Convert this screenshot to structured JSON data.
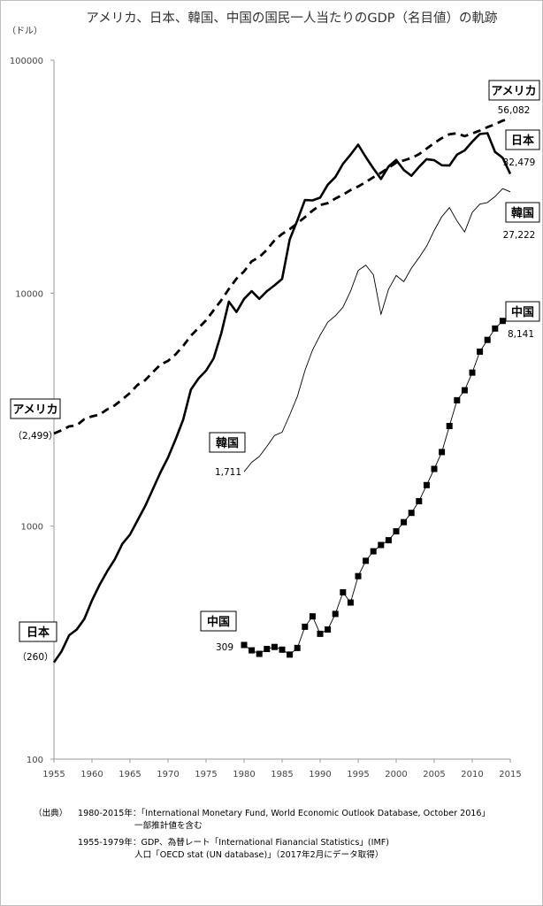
{
  "chart_data": {
    "type": "line",
    "title": "アメリカ、日本、韓国、中国の国民一人当たりのGDP（名目値）の軌跡",
    "ylabel": "（ドル）",
    "xlabel": "",
    "yscale": "log",
    "ylim": [
      100,
      100000
    ],
    "xlim": [
      1955,
      2015
    ],
    "yticks": [
      "100",
      "1000",
      "10000",
      "100000"
    ],
    "xticks": [
      "1955",
      "1960",
      "1965",
      "1970",
      "1975",
      "1980",
      "1985",
      "1990",
      "1995",
      "2000",
      "2005",
      "2010",
      "2015"
    ],
    "grid": false,
    "series": [
      {
        "name": "アメリカ",
        "start_label": "アメリカ",
        "start_value": "（2,499）",
        "end_label": "アメリカ",
        "end_value": "56,082",
        "color": "#000000",
        "style": "dashed",
        "x": [
          1955,
          1956,
          1957,
          1958,
          1959,
          1960,
          1961,
          1962,
          1963,
          1964,
          1965,
          1966,
          1967,
          1968,
          1969,
          1970,
          1971,
          1972,
          1973,
          1974,
          1975,
          1976,
          1977,
          1978,
          1979,
          1980,
          1981,
          1982,
          1983,
          1984,
          1985,
          1986,
          1987,
          1988,
          1989,
          1990,
          1991,
          1992,
          1993,
          1994,
          1995,
          1996,
          1997,
          1998,
          1999,
          2000,
          2001,
          2002,
          2003,
          2004,
          2005,
          2006,
          2007,
          2008,
          2009,
          2010,
          2011,
          2012,
          2013,
          2014,
          2015
        ],
        "y": [
          2499,
          2580,
          2680,
          2710,
          2880,
          2960,
          3010,
          3170,
          3300,
          3500,
          3730,
          4040,
          4230,
          4580,
          4930,
          5120,
          5460,
          5940,
          6560,
          7090,
          7650,
          8450,
          9320,
          10420,
          11540,
          12400,
          13700,
          14260,
          15360,
          16860,
          17950,
          18830,
          19940,
          21200,
          22600,
          23900,
          24340,
          25470,
          26440,
          27700,
          28690,
          29960,
          31460,
          32850,
          34520,
          36330,
          37130,
          38020,
          39490,
          41720,
          44120,
          46300,
          48050,
          48570,
          47190,
          48470,
          49870,
          51600,
          53100,
          55000,
          56082
        ]
      },
      {
        "name": "日本",
        "start_label": "日本",
        "start_value": "（260）",
        "end_label": "日本",
        "end_value": "32,479",
        "color": "#000000",
        "style": "solid",
        "x": [
          1955,
          1956,
          1957,
          1958,
          1959,
          1960,
          1961,
          1962,
          1963,
          1964,
          1965,
          1966,
          1967,
          1968,
          1969,
          1970,
          1971,
          1972,
          1973,
          1974,
          1975,
          1976,
          1977,
          1978,
          1979,
          1980,
          1981,
          1982,
          1983,
          1984,
          1985,
          1986,
          1987,
          1988,
          1989,
          1990,
          1991,
          1992,
          1993,
          1994,
          1995,
          1996,
          1997,
          1998,
          1999,
          2000,
          2001,
          2002,
          2003,
          2004,
          2005,
          2006,
          2007,
          2008,
          2009,
          2010,
          2011,
          2012,
          2013,
          2014,
          2015
        ],
        "y": [
          260,
          290,
          340,
          360,
          400,
          480,
          560,
          640,
          720,
          840,
          920,
          1060,
          1220,
          1440,
          1700,
          1970,
          2360,
          2870,
          3850,
          4300,
          4650,
          5250,
          6720,
          9200,
          8300,
          9450,
          10200,
          9450,
          10200,
          10800,
          11500,
          17000,
          20500,
          25100,
          25000,
          25700,
          29200,
          31500,
          35900,
          39300,
          43400,
          38400,
          34300,
          30900,
          35000,
          37300,
          33800,
          31900,
          34800,
          37600,
          37200,
          35400,
          35300,
          39300,
          41000,
          44700,
          48200,
          48600,
          40400,
          38100,
          32479
        ]
      },
      {
        "name": "韓国",
        "start_label": "韓国",
        "start_value": "1,711",
        "end_label": "韓国",
        "end_value": "27,222",
        "color": "#000000",
        "style": "thin",
        "x": [
          1980,
          1981,
          1982,
          1983,
          1984,
          1985,
          1986,
          1987,
          1988,
          1989,
          1990,
          1991,
          1992,
          1993,
          1994,
          1995,
          1996,
          1997,
          1998,
          1999,
          2000,
          2001,
          2002,
          2003,
          2004,
          2005,
          2006,
          2007,
          2008,
          2009,
          2010,
          2011,
          2012,
          2013,
          2014,
          2015
        ],
        "y": [
          1711,
          1880,
          1990,
          2200,
          2450,
          2530,
          3000,
          3600,
          4650,
          5700,
          6600,
          7500,
          8000,
          8700,
          10200,
          12500,
          13200,
          12000,
          8100,
          10400,
          11900,
          11200,
          12800,
          14200,
          15900,
          18600,
          21300,
          23300,
          20400,
          18300,
          22200,
          24100,
          24500,
          26000,
          28100,
          27222
        ]
      },
      {
        "name": "中国",
        "start_label": "中国",
        "start_value": "309",
        "end_label": "中国",
        "end_value": "8,141",
        "color": "#000000",
        "style": "thin-square-markers",
        "x": [
          1980,
          1981,
          1982,
          1983,
          1984,
          1985,
          1986,
          1987,
          1988,
          1989,
          1990,
          1991,
          1992,
          1993,
          1994,
          1995,
          1996,
          1997,
          1998,
          1999,
          2000,
          2001,
          2002,
          2003,
          2004,
          2005,
          2006,
          2007,
          2008,
          2009,
          2010,
          2011,
          2012,
          2013,
          2014,
          2015
        ],
        "y": [
          309,
          293,
          283,
          297,
          303,
          295,
          281,
          300,
          370,
          410,
          345,
          360,
          420,
          520,
          470,
          610,
          710,
          780,
          830,
          870,
          950,
          1040,
          1140,
          1280,
          1500,
          1760,
          2080,
          2690,
          3470,
          3830,
          4560,
          5610,
          6300,
          7050,
          7600,
          8141
        ]
      }
    ]
  },
  "source": {
    "head": "（出典）",
    "line1": "1980-2015年：「International Monetary Fund, World Economic Outlook Database, October 2016」",
    "line2": "一部推計値を含む",
    "line3": "1955-1979年：GDP、為替レート「International Fianancial Statistics」(IMF)",
    "line4": "人口「OECD stat (UN database)」（2017年2月にデータ取得）"
  }
}
